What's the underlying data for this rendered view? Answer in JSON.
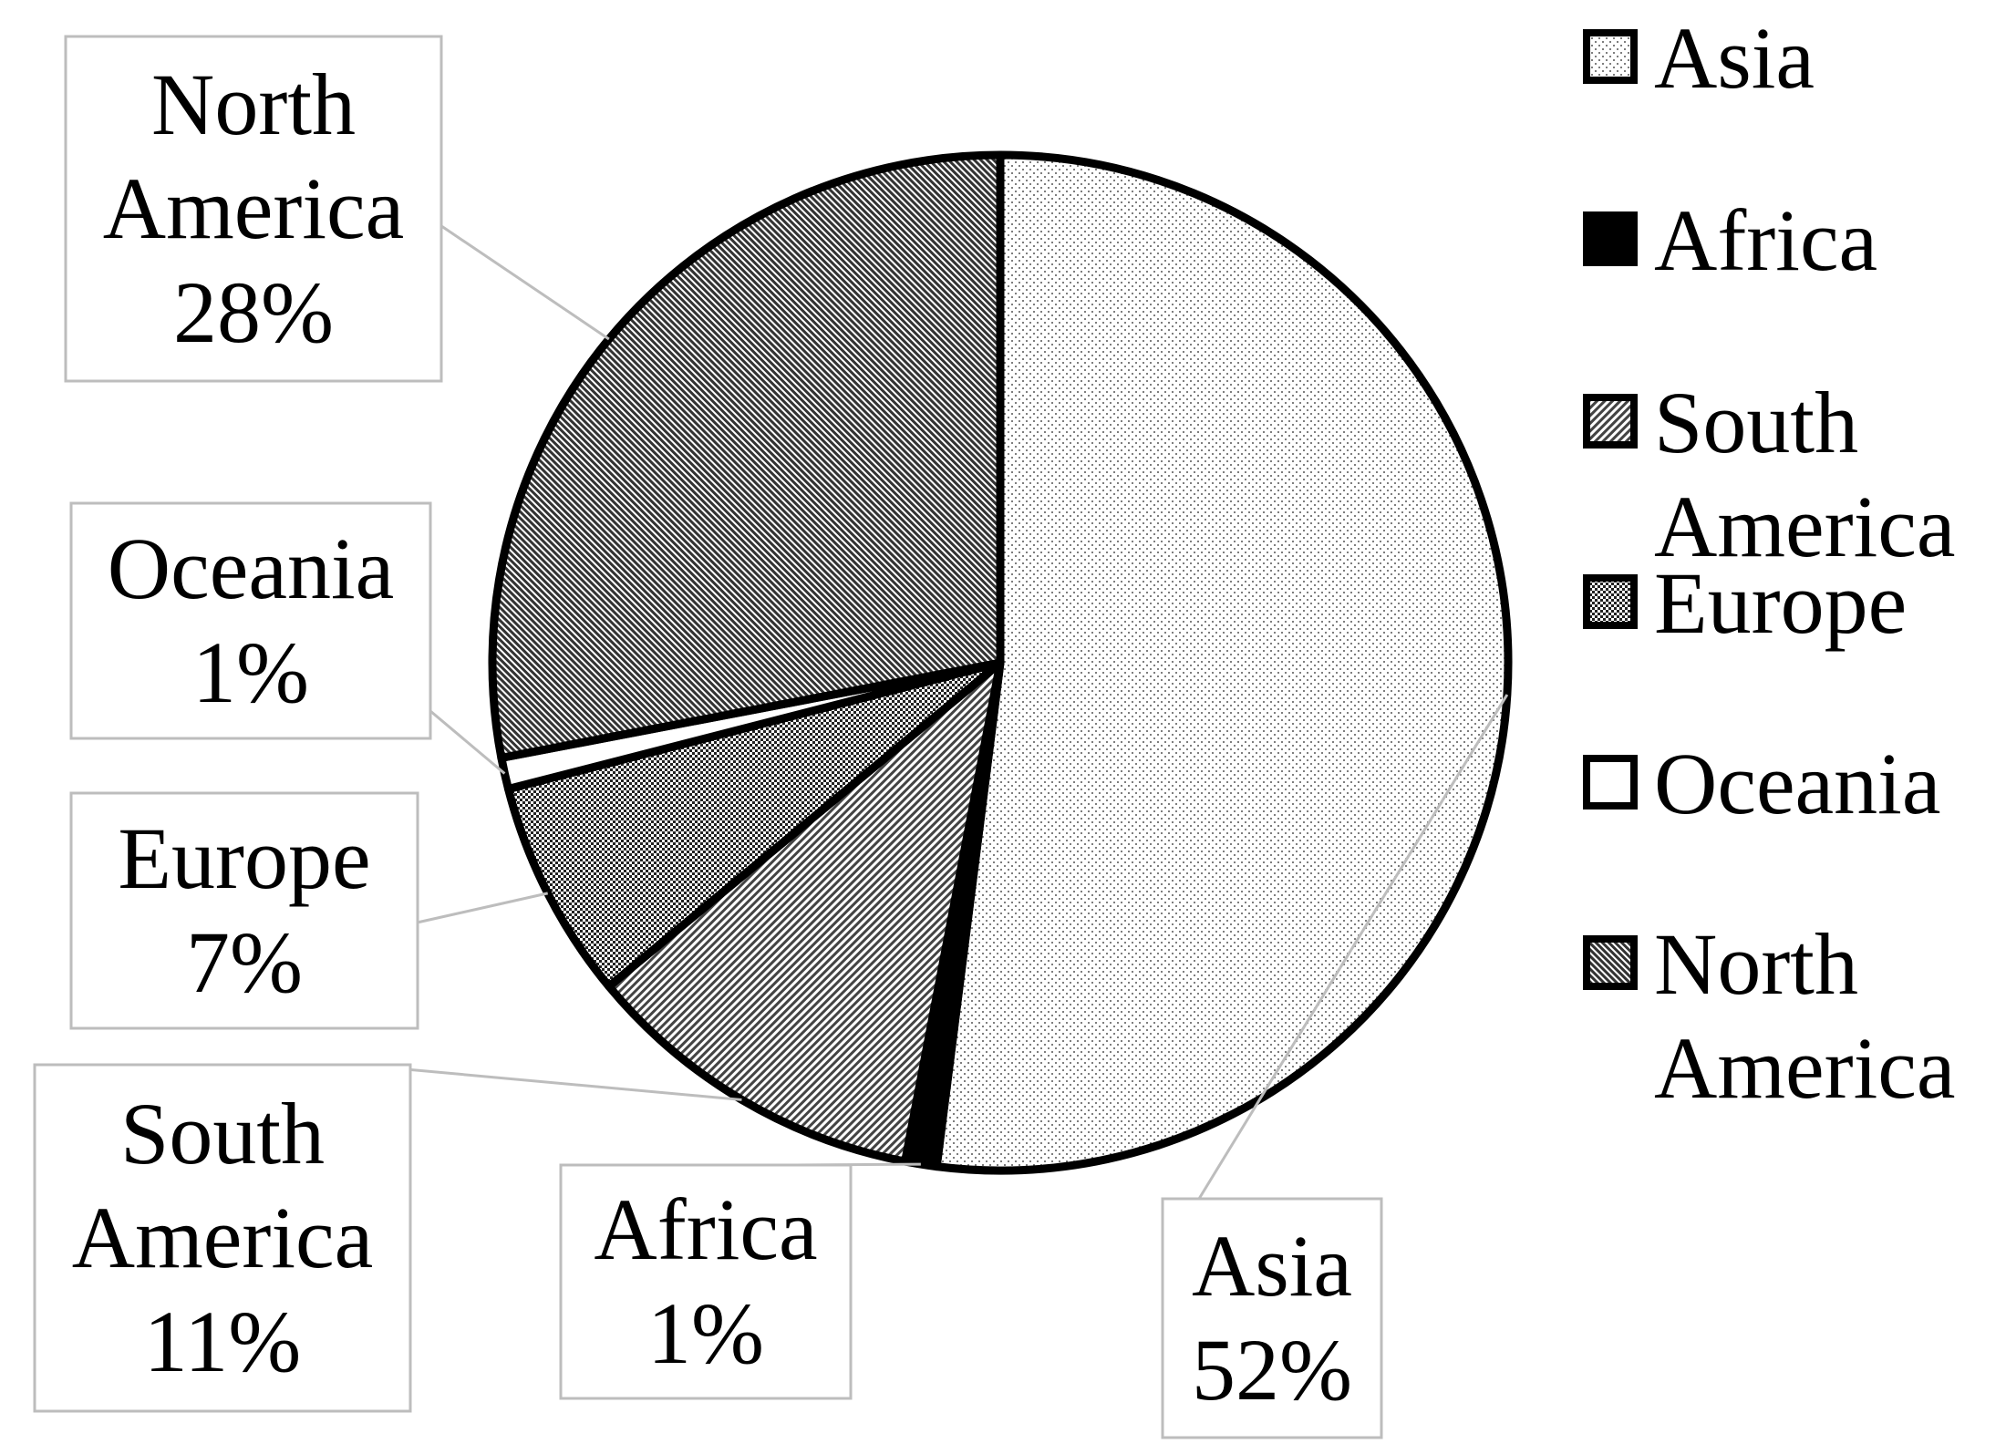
{
  "chart_data": {
    "type": "pie",
    "title": "",
    "legend_position": "right",
    "slices": [
      {
        "name": "Asia",
        "value": 52,
        "label": "52%",
        "pattern": "dots-light"
      },
      {
        "name": "Africa",
        "value": 1,
        "label": "1%",
        "pattern": "solid-black"
      },
      {
        "name": "South America",
        "value": 11,
        "label": "11%",
        "pattern": "diagonal-hatch"
      },
      {
        "name": "Europe",
        "value": 7,
        "label": "7%",
        "pattern": "checker-dense"
      },
      {
        "name": "Oceania",
        "value": 1,
        "label": "1%",
        "pattern": "white"
      },
      {
        "name": "North America",
        "value": 28,
        "label": "28%",
        "pattern": "diagonal-dense"
      }
    ],
    "legend": {
      "entries": [
        "Asia",
        "Africa",
        "South America",
        "Europe",
        "Oceania",
        "North America"
      ]
    }
  }
}
